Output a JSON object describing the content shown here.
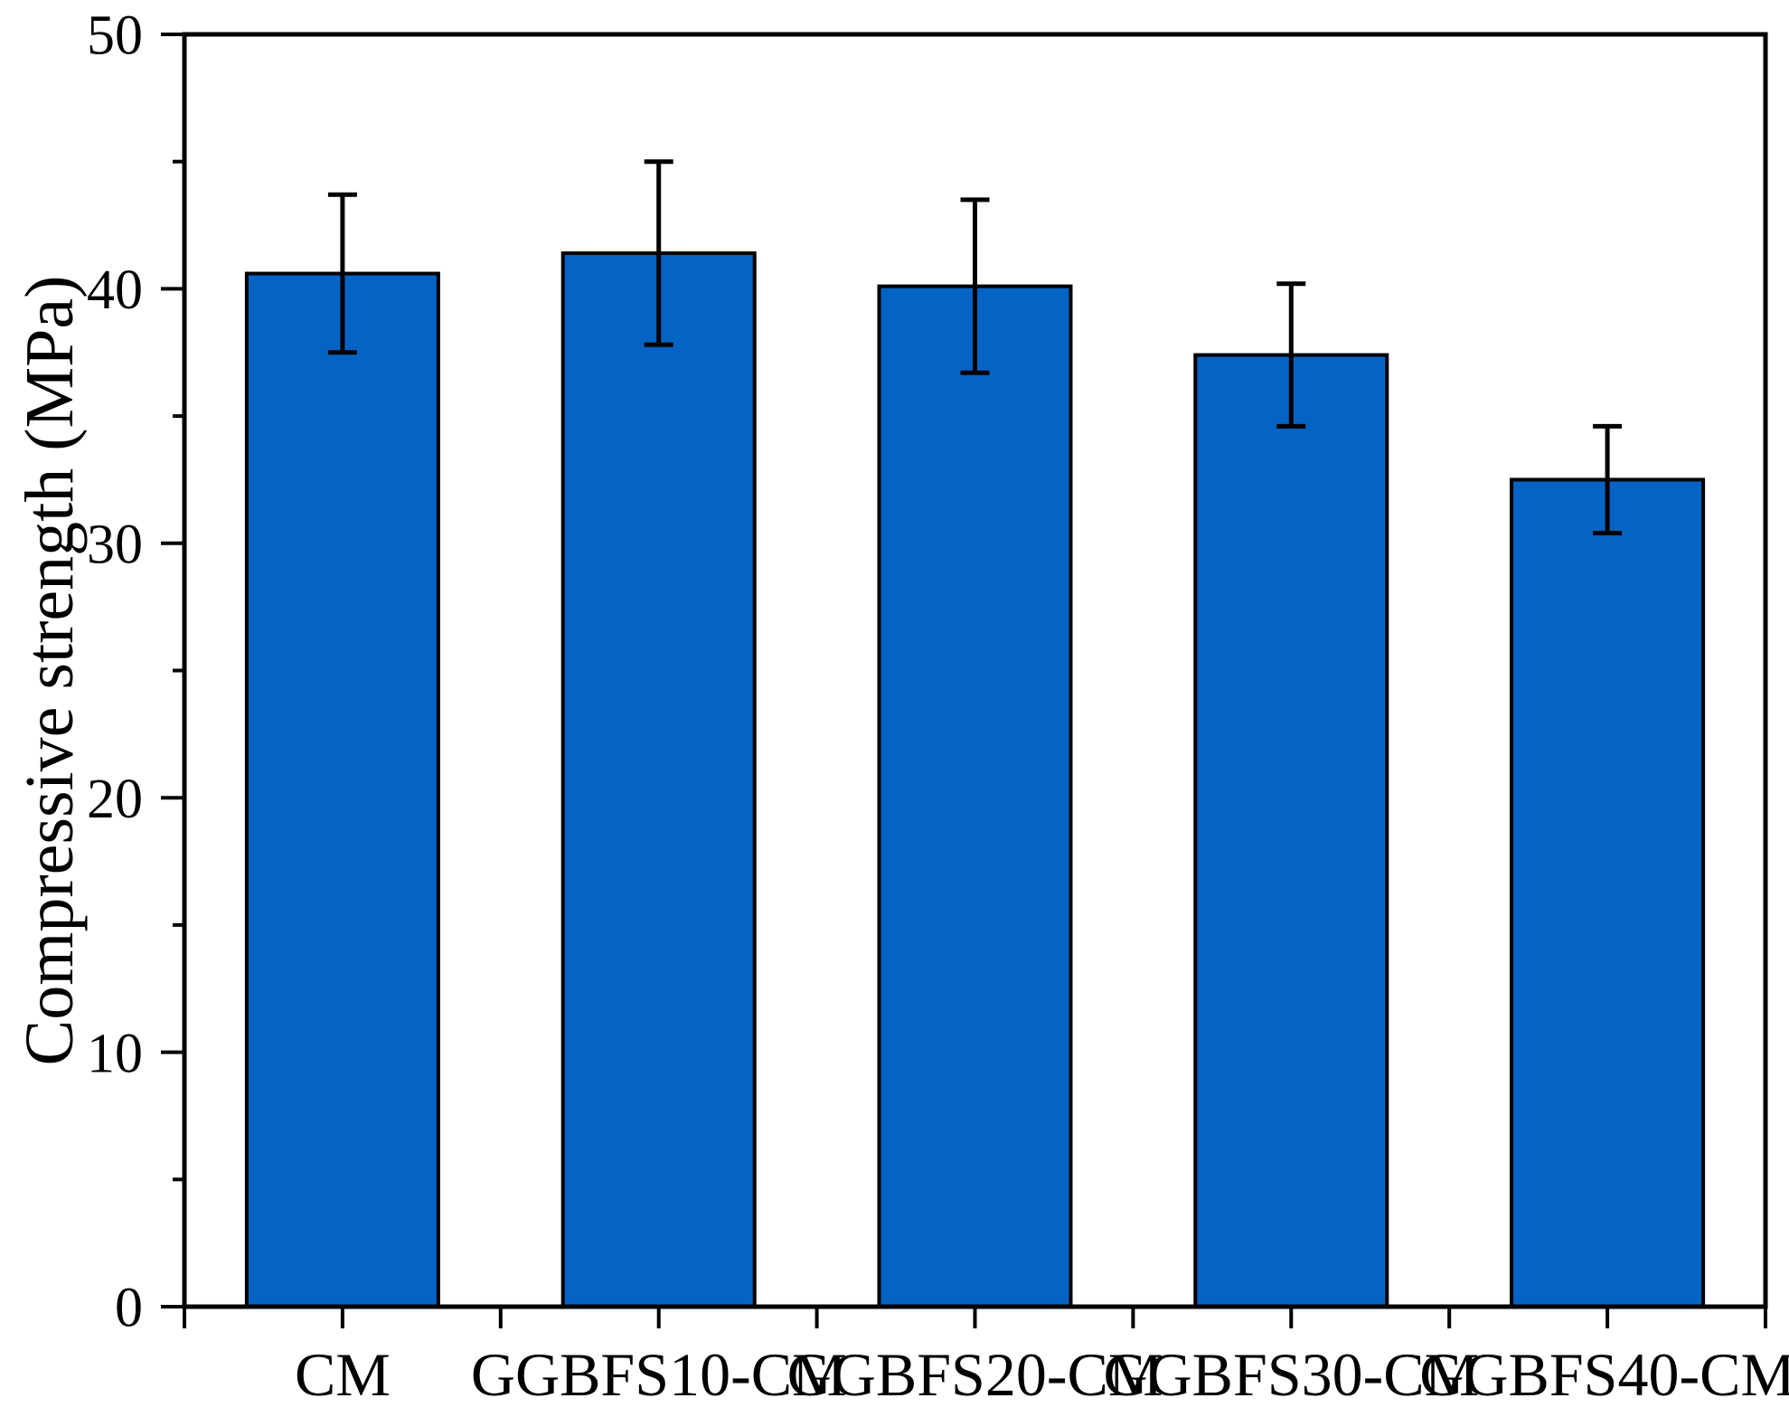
{
  "figure": {
    "background_color": "#ffffff",
    "frame_color": "#000000"
  },
  "chart_data": {
    "type": "bar",
    "title": "",
    "xlabel": "",
    "ylabel": "Compressive strength (MPa)",
    "categories": [
      "CM",
      "GGBFS10-CM",
      "GGBFS20-CM",
      "GGBFS30-CM",
      "GGBFS40-CM"
    ],
    "values": [
      40.6,
      41.4,
      40.1,
      37.4,
      32.5
    ],
    "error_bars": [
      3.1,
      3.6,
      3.4,
      2.8,
      2.1
    ],
    "ylim": [
      0,
      50
    ],
    "yticks_major": [
      0,
      10,
      20,
      30,
      40,
      50
    ],
    "yticks_minor": [
      5,
      15,
      25,
      35,
      45
    ],
    "grid": false,
    "legend": "none",
    "bar_color": "#0563C4",
    "bar_edge_color": "#000000",
    "error_bar_color": "#000000",
    "axis_color": "#000000"
  }
}
